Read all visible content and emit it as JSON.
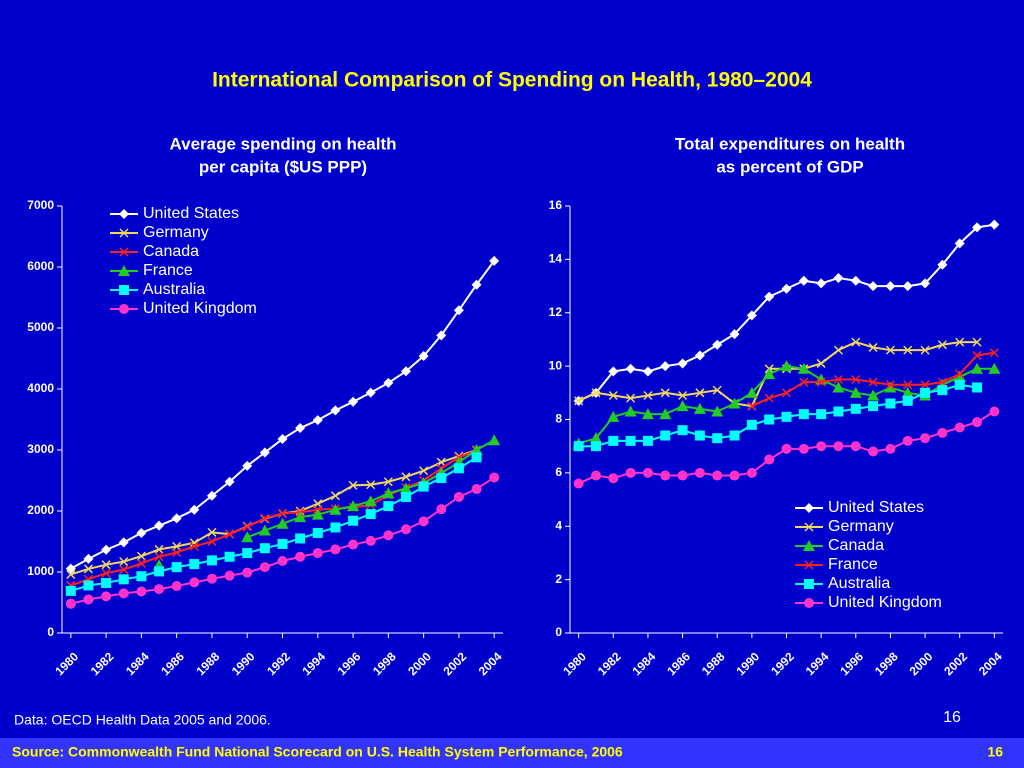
{
  "title": "International Comparison of Spending on Health, 1980–2004",
  "note": "Data: OECD Health Data 2005 and 2006.",
  "page_number": "16",
  "footer": {
    "source": "Source: Commonwealth Fund National Scorecard on U.S. Health System Performance, 2006",
    "page": "16"
  },
  "chart_data": [
    {
      "type": "line",
      "title": [
        "Average spending on health",
        "per capita ($US PPP)"
      ],
      "x": [
        1980,
        1981,
        1982,
        1983,
        1984,
        1985,
        1986,
        1987,
        1988,
        1989,
        1990,
        1991,
        1992,
        1993,
        1994,
        1995,
        1996,
        1997,
        1998,
        1999,
        2000,
        2001,
        2002,
        2003,
        2004
      ],
      "xlim": [
        1979.5,
        2004.5
      ],
      "xticks": [
        1980,
        1982,
        1984,
        1986,
        1988,
        1990,
        1992,
        1994,
        1996,
        1998,
        2000,
        2002,
        2004
      ],
      "ylim": [
        0,
        7000
      ],
      "yticks": [
        0,
        1000,
        2000,
        3000,
        4000,
        5000,
        6000,
        7000
      ],
      "legend": "upper left",
      "series": [
        {
          "name": "United States",
          "color": "#ffffff",
          "marker": "diamond",
          "values": [
            1055,
            1215,
            1365,
            1485,
            1640,
            1760,
            1880,
            2020,
            2250,
            2480,
            2740,
            2960,
            3180,
            3360,
            3490,
            3650,
            3790,
            3940,
            4100,
            4290,
            4540,
            4880,
            5290,
            5710,
            6100
          ]
        },
        {
          "name": "Germany",
          "color": "#f0d860",
          "marker": "x",
          "values": [
            960,
            1050,
            1120,
            1170,
            1260,
            1370,
            1420,
            1480,
            1650,
            1620,
            1750,
            1870,
            1960,
            2000,
            2120,
            2250,
            2420,
            2430,
            2480,
            2560,
            2660,
            2800,
            2900,
            3000,
            null
          ]
        },
        {
          "name": "Canada",
          "color": "#ff2020",
          "marker": "x",
          "values": [
            780,
            880,
            980,
            1040,
            1140,
            1250,
            1320,
            1420,
            1500,
            1620,
            1740,
            1880,
            1960,
            1980,
            2020,
            2040,
            2060,
            2100,
            2260,
            2380,
            2500,
            2700,
            2880,
            2990,
            null
          ]
        },
        {
          "name": "France",
          "color": "#22cc22",
          "marker": "triangle",
          "values": [
            null,
            null,
            null,
            null,
            null,
            1110,
            null,
            null,
            null,
            null,
            1570,
            1680,
            1790,
            1900,
            1940,
            2020,
            2080,
            2160,
            2290,
            2370,
            2460,
            2620,
            2800,
            3000,
            3160
          ]
        },
        {
          "name": "Australia",
          "color": "#00ffff",
          "marker": "square",
          "values": [
            690,
            780,
            820,
            880,
            930,
            1010,
            1080,
            1130,
            1190,
            1250,
            1310,
            1390,
            1460,
            1550,
            1640,
            1730,
            1840,
            1950,
            2080,
            2230,
            2400,
            2540,
            2700,
            2880,
            null
          ]
        },
        {
          "name": "United Kingdom",
          "color": "#ff33cc",
          "marker": "circle",
          "values": [
            480,
            550,
            600,
            650,
            680,
            720,
            770,
            830,
            890,
            940,
            990,
            1080,
            1180,
            1250,
            1310,
            1370,
            1450,
            1510,
            1600,
            1700,
            1830,
            2030,
            2230,
            2360,
            2550
          ]
        }
      ]
    },
    {
      "type": "line",
      "title": [
        "Total expenditures on health",
        "as percent of GDP"
      ],
      "x": [
        1980,
        1981,
        1982,
        1983,
        1984,
        1985,
        1986,
        1987,
        1988,
        1989,
        1990,
        1991,
        1992,
        1993,
        1994,
        1995,
        1996,
        1997,
        1998,
        1999,
        2000,
        2001,
        2002,
        2003,
        2004
      ],
      "xlim": [
        1979.5,
        2004.5
      ],
      "xticks": [
        1980,
        1982,
        1984,
        1986,
        1988,
        1990,
        1992,
        1994,
        1996,
        1998,
        2000,
        2002,
        2004
      ],
      "ylim": [
        0,
        16
      ],
      "yticks": [
        0,
        2,
        4,
        6,
        8,
        10,
        12,
        14,
        16
      ],
      "legend": "lower right",
      "series": [
        {
          "name": "United States",
          "color": "#ffffff",
          "marker": "diamond",
          "values": [
            8.7,
            9.0,
            9.8,
            9.9,
            9.8,
            10.0,
            10.1,
            10.4,
            10.8,
            11.2,
            11.9,
            12.6,
            12.9,
            13.2,
            13.1,
            13.3,
            13.2,
            13.0,
            13.0,
            13.0,
            13.1,
            13.8,
            14.6,
            15.2,
            15.3
          ]
        },
        {
          "name": "Germany",
          "color": "#f0d860",
          "marker": "x",
          "values": [
            8.7,
            9.0,
            8.9,
            8.8,
            8.9,
            9.0,
            8.9,
            9.0,
            9.1,
            8.6,
            8.5,
            9.9,
            9.9,
            9.9,
            10.1,
            10.6,
            10.9,
            10.7,
            10.6,
            10.6,
            10.6,
            10.8,
            10.9,
            10.9,
            null
          ]
        },
        {
          "name": "Canada",
          "color": "#22cc22",
          "marker": "triangle",
          "values": [
            7.1,
            7.3,
            8.1,
            8.3,
            8.2,
            8.2,
            8.5,
            8.4,
            8.3,
            8.6,
            9.0,
            9.7,
            10.0,
            9.9,
            9.5,
            9.2,
            9.0,
            8.9,
            9.2,
            9.0,
            8.9,
            9.3,
            9.6,
            9.9,
            9.9
          ]
        },
        {
          "name": "France",
          "color": "#ff2020",
          "marker": "x",
          "values": [
            null,
            null,
            null,
            null,
            null,
            null,
            null,
            null,
            null,
            null,
            8.5,
            8.8,
            9.0,
            9.4,
            9.4,
            9.5,
            9.5,
            9.4,
            9.3,
            9.3,
            9.3,
            9.4,
            9.7,
            10.4,
            10.5
          ]
        },
        {
          "name": "Australia",
          "color": "#00ffff",
          "marker": "square",
          "values": [
            7.0,
            7.0,
            7.2,
            7.2,
            7.2,
            7.4,
            7.6,
            7.4,
            7.3,
            7.4,
            7.8,
            8.0,
            8.1,
            8.2,
            8.2,
            8.3,
            8.4,
            8.5,
            8.6,
            8.7,
            9.0,
            9.1,
            9.3,
            9.2,
            null
          ]
        },
        {
          "name": "United Kingdom",
          "color": "#ff33cc",
          "marker": "circle",
          "values": [
            5.6,
            5.9,
            5.8,
            6.0,
            6.0,
            5.9,
            5.9,
            6.0,
            5.9,
            5.9,
            6.0,
            6.5,
            6.9,
            6.9,
            7.0,
            7.0,
            7.0,
            6.8,
            6.9,
            7.2,
            7.3,
            7.5,
            7.7,
            7.9,
            8.3
          ]
        }
      ]
    }
  ]
}
